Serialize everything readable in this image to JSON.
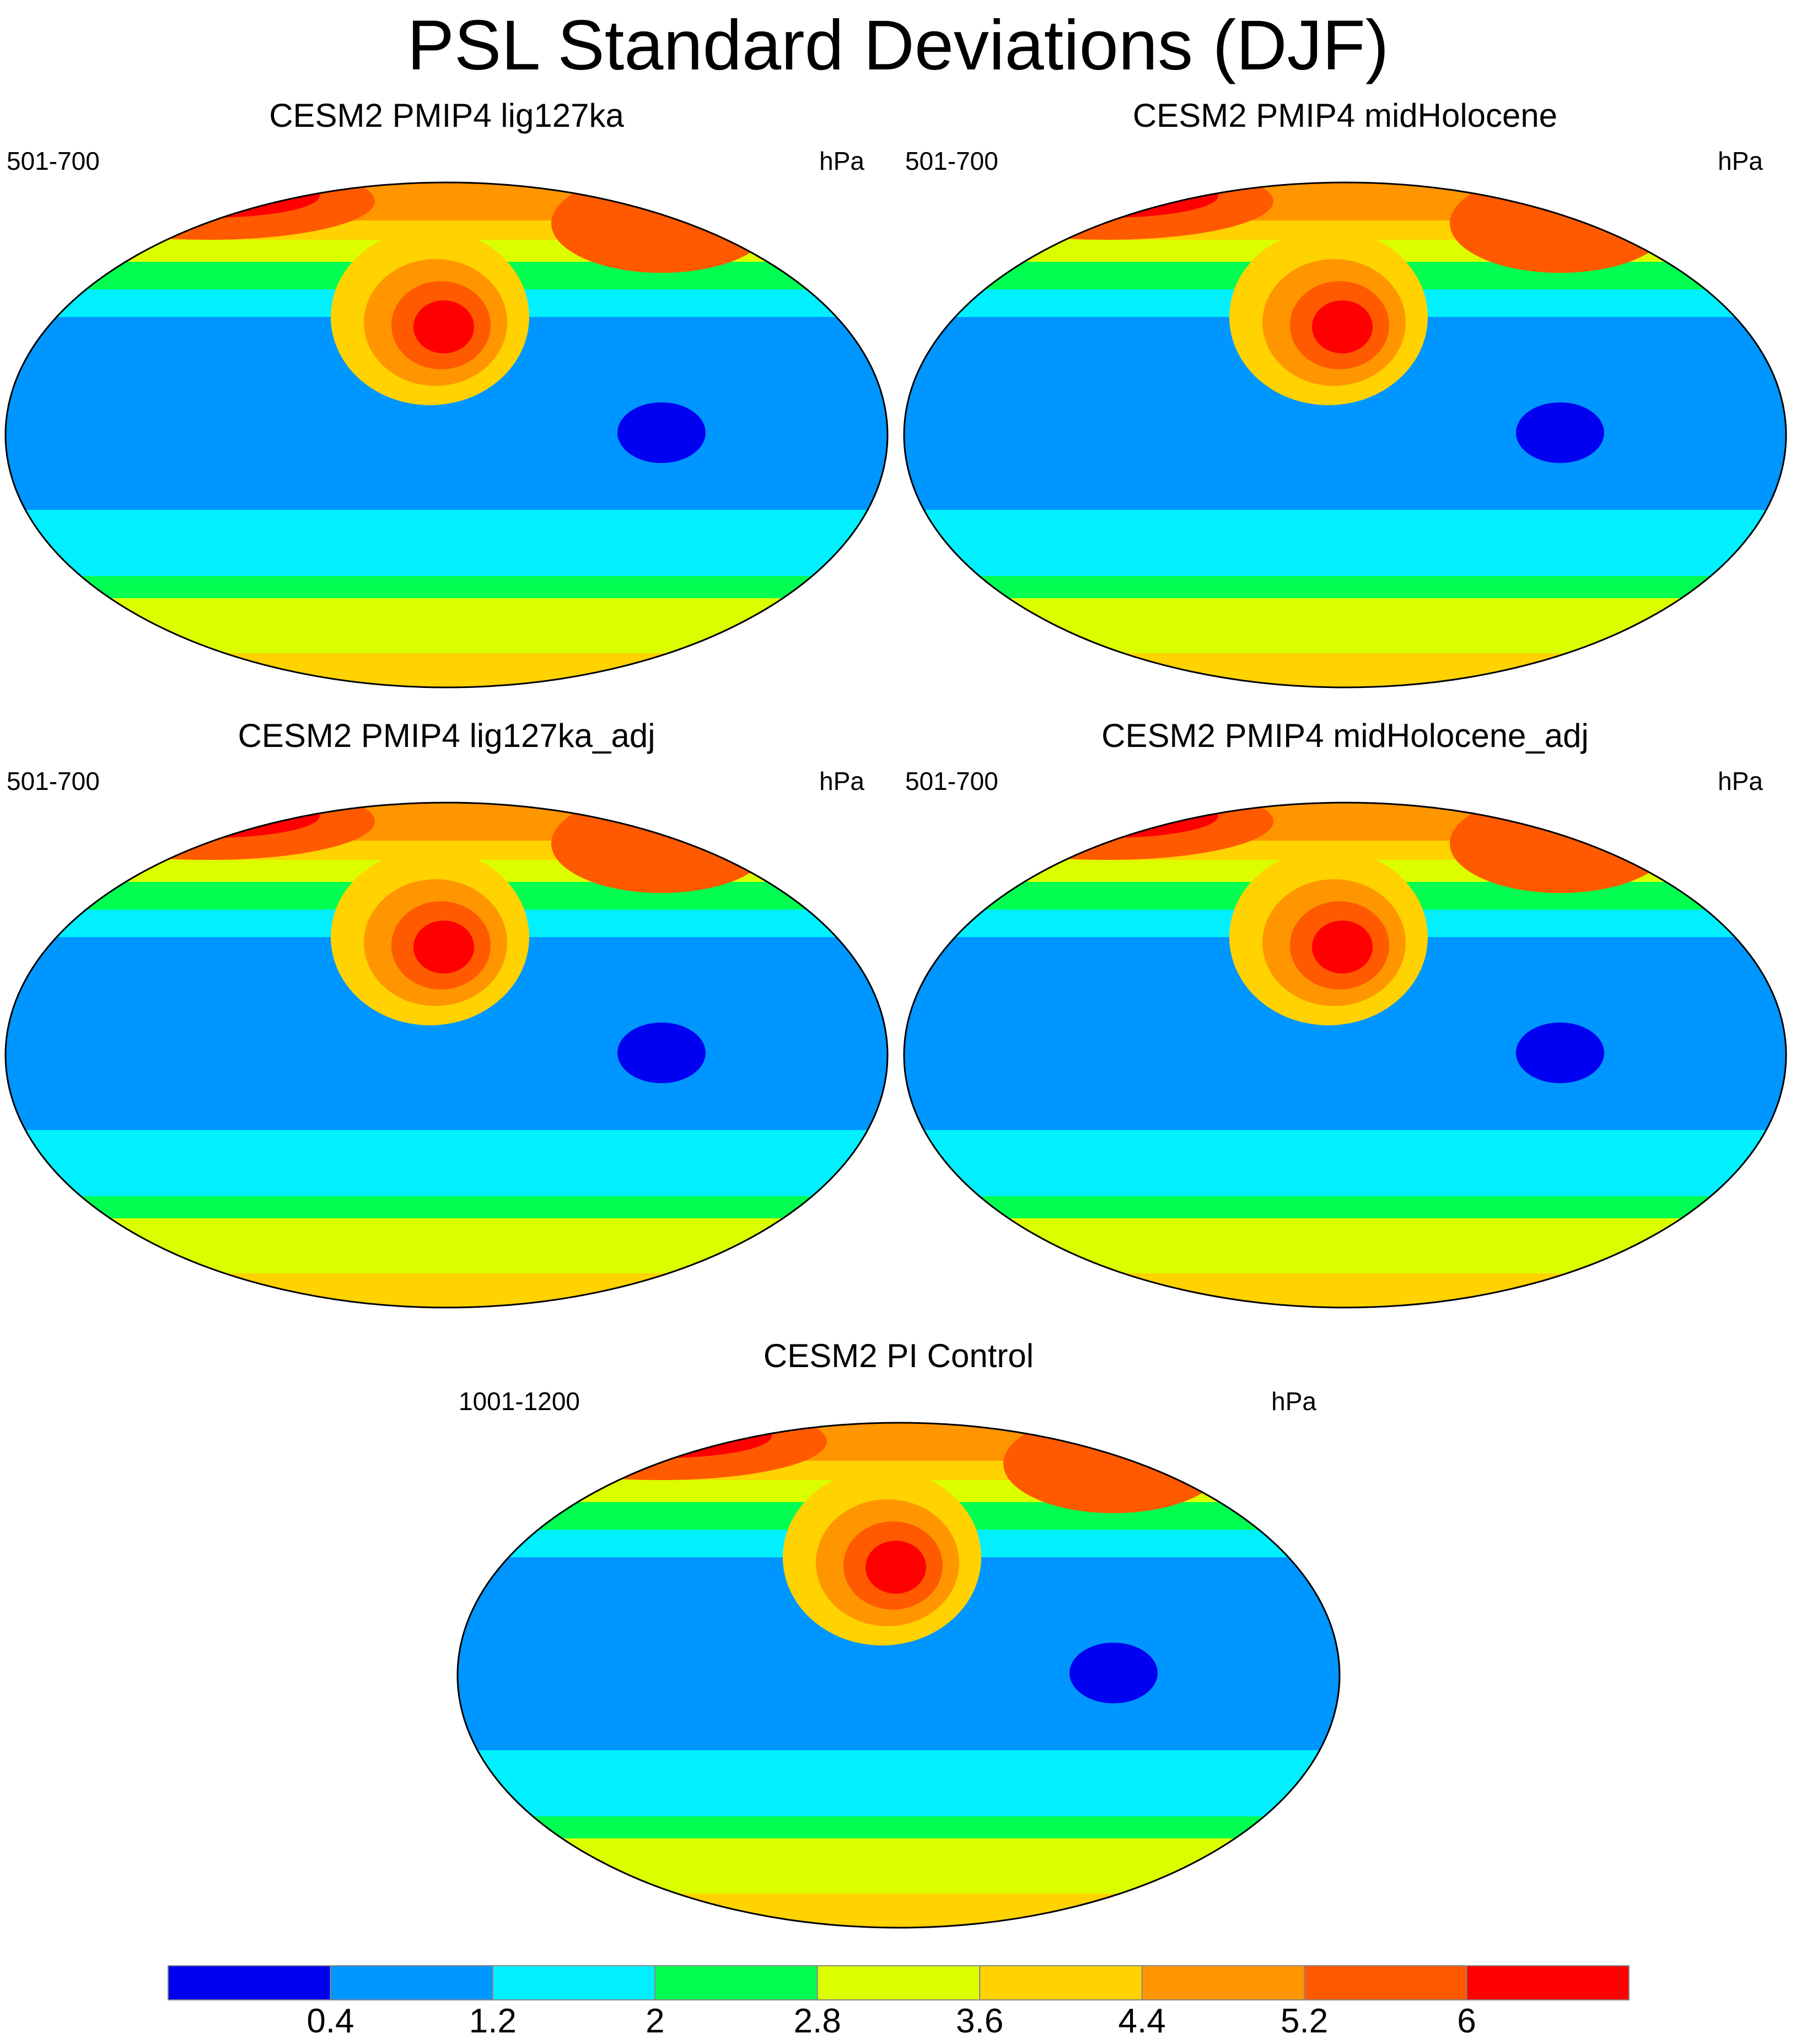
{
  "title": "PSL Standard Deviations (DJF)",
  "panels": [
    {
      "title": "CESM2 PMIP4 lig127ka",
      "years": "501-700",
      "units": "hPa"
    },
    {
      "title": "CESM2 PMIP4 midHolocene",
      "years": "501-700",
      "units": "hPa"
    },
    {
      "title": "CESM2 PMIP4 lig127ka_adj",
      "years": "501-700",
      "units": "hPa"
    },
    {
      "title": "CESM2 PMIP4 midHolocene_adj",
      "years": "501-700",
      "units": "hPa"
    },
    {
      "title": "CESM2 PI Control",
      "years": "1001-1200",
      "units": "hPa"
    }
  ],
  "colorbar": {
    "labels": [
      "0.4",
      "1.2",
      "2",
      "2.8",
      "3.6",
      "4.4",
      "5.2",
      "6"
    ],
    "colors": [
      "#0000f0",
      "#0096ff",
      "#00f0ff",
      "#00ff50",
      "#dcff00",
      "#ffd200",
      "#ff9600",
      "#ff5a00",
      "#ff0000"
    ]
  },
  "map_projection": "global-ellipse"
}
